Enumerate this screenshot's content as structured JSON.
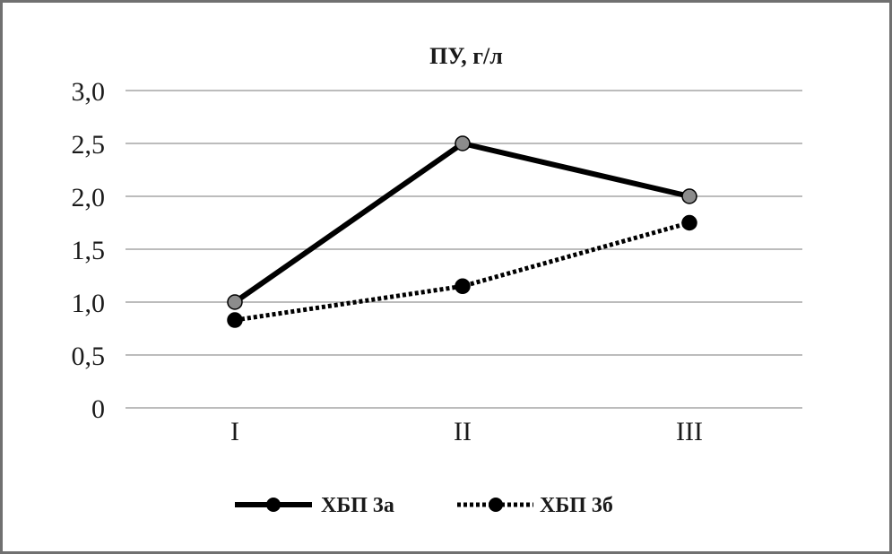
{
  "chart_data": {
    "type": "line",
    "title": "ПУ, г/л",
    "categories": [
      "I",
      "II",
      "III"
    ],
    "y_tick_labels": [
      "0",
      "0,5",
      "1,0",
      "1,5",
      "2,0",
      "2,5",
      "3,0"
    ],
    "y_ticks": [
      0,
      0.5,
      1.0,
      1.5,
      2.0,
      2.5,
      3.0
    ],
    "ylim": [
      0,
      3.0
    ],
    "grid": true,
    "legend_position": "bottom",
    "series": [
      {
        "name": "ХБП 3а",
        "values": [
          1.0,
          2.5,
          2.0
        ],
        "line_style": "solid",
        "color": "#000000",
        "marker_color": "#8c8c8c"
      },
      {
        "name": "ХБП 3б",
        "values": [
          0.83,
          1.15,
          1.75
        ],
        "line_style": "dotted",
        "color": "#000000",
        "marker_color": "#000000"
      }
    ]
  }
}
